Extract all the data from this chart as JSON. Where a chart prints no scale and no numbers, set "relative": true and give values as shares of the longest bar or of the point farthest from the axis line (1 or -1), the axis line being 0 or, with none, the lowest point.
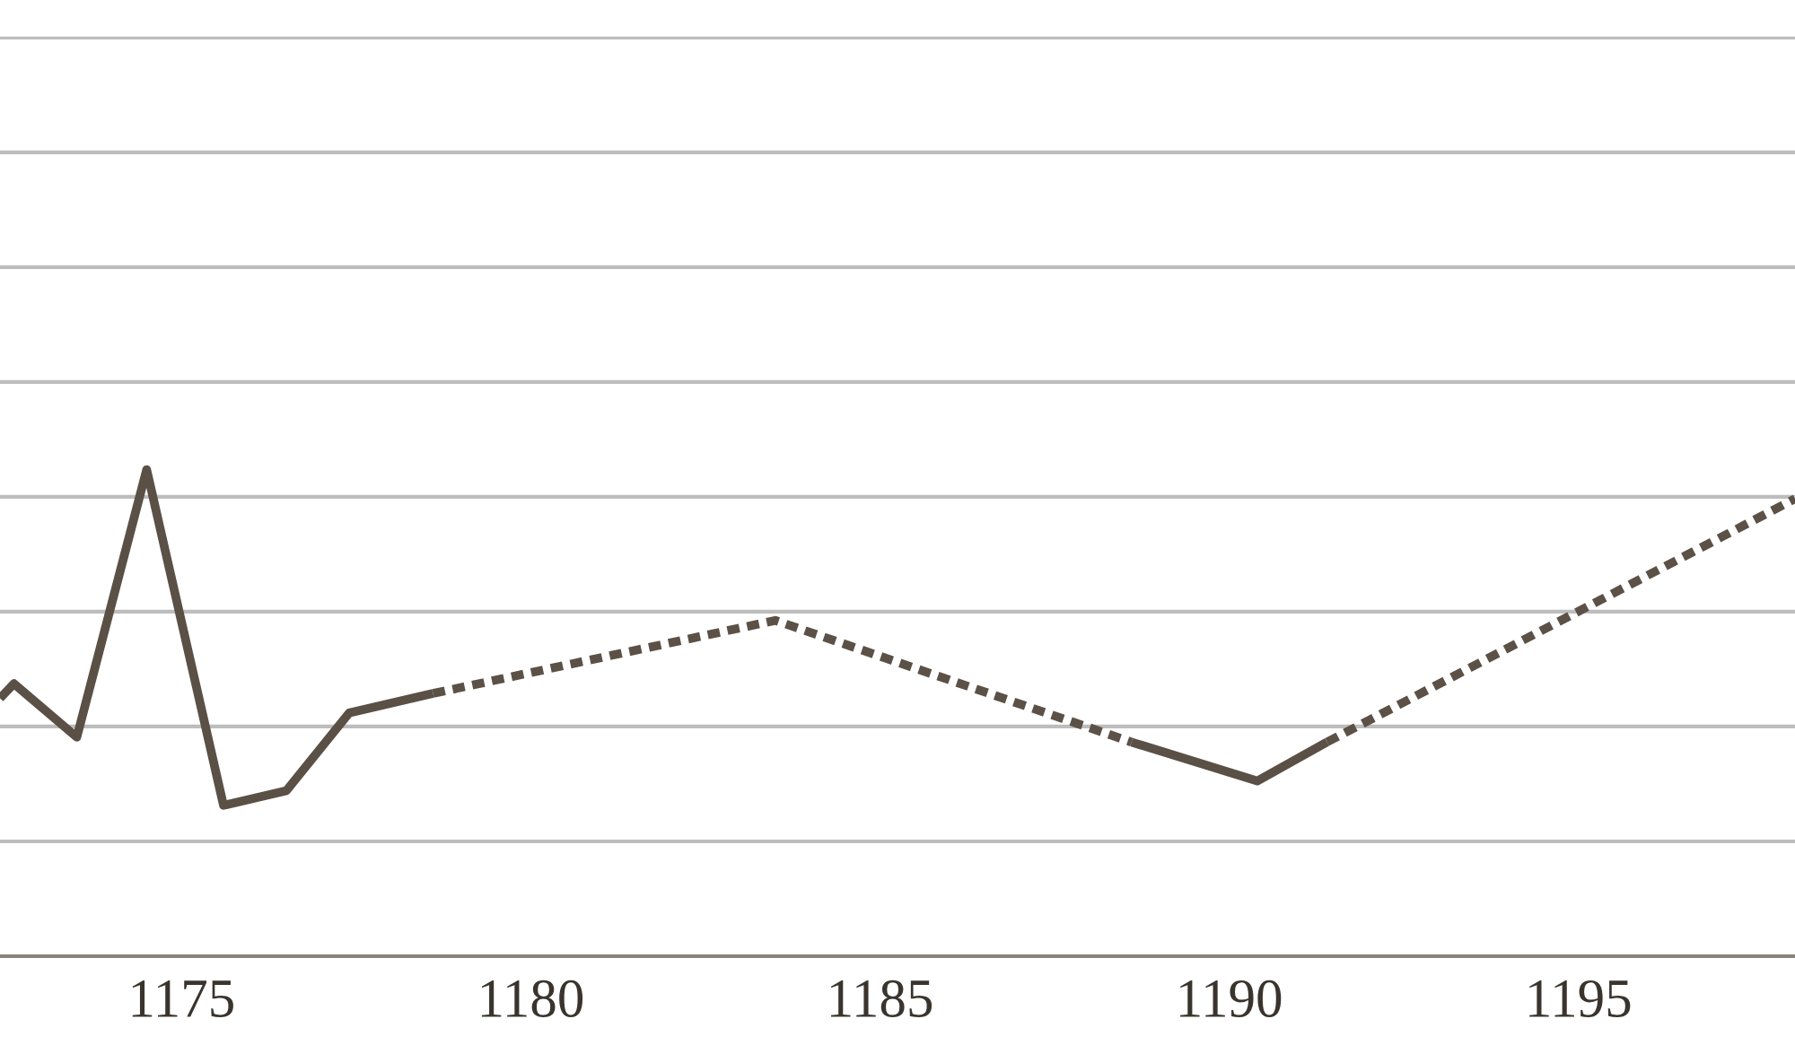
{
  "chart_data": {
    "type": "line",
    "relative": true,
    "grid": "y",
    "xlim": [
      1172.4,
      1198.1
    ],
    "xticks": [
      1175,
      1180,
      1185,
      1190,
      1195
    ],
    "series": [
      {
        "color": "#5a5046",
        "line_style": "solid",
        "x": [
          1172.4,
          1172.6,
          1173.5,
          1174.5,
          1175.6,
          1176.5,
          1177.4,
          1178.6,
          null,
          1188.6,
          1190.4,
          1191.4
        ],
        "values": [
          0.53,
          0.56,
          0.45,
          1.0,
          0.31,
          0.34,
          0.5,
          0.54,
          null,
          0.44,
          0.36,
          0.44
        ]
      },
      {
        "color": "#5c5147",
        "line_style": "dotted",
        "x": [
          1178.6,
          1183.5,
          1188.6,
          null,
          1191.4,
          1198.1
        ],
        "values": [
          0.54,
          0.69,
          0.44,
          null,
          0.44,
          0.94
        ]
      }
    ]
  }
}
